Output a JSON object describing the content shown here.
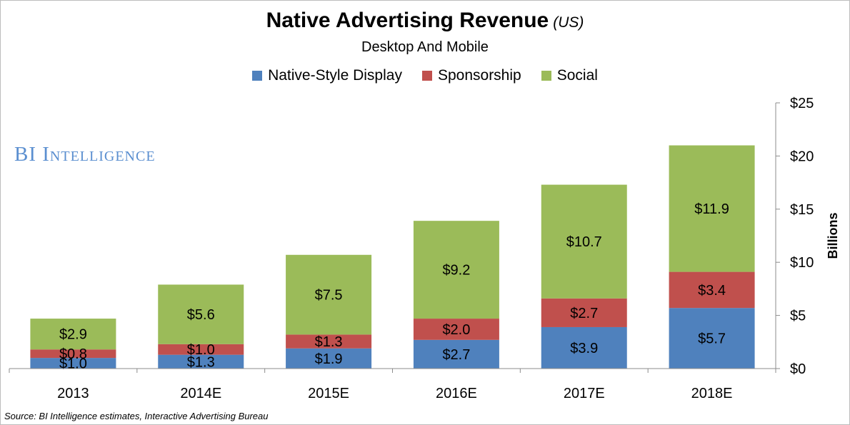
{
  "title": "Native Advertising Revenue",
  "title_suffix": "(US)",
  "subtitle": "Desktop And Mobile",
  "watermark": "BI Intelligence",
  "source": "Source: BI Intelligence estimates, Interactive Advertising Bureau",
  "chart_data": {
    "type": "bar",
    "stacked": true,
    "categories": [
      "2013",
      "2014E",
      "2015E",
      "2016E",
      "2017E",
      "2018E"
    ],
    "series": [
      {
        "name": "Native-Style Display",
        "color": "#4f81bd",
        "values": [
          1.0,
          1.3,
          1.9,
          2.7,
          3.9,
          5.7
        ],
        "labels": [
          "$1.0",
          "$1.3",
          "$1.9",
          "$2.7",
          "$3.9",
          "$5.7"
        ]
      },
      {
        "name": "Sponsorship",
        "color": "#c0504d",
        "values": [
          0.8,
          1.0,
          1.3,
          2.0,
          2.7,
          3.4
        ],
        "labels": [
          "$0.8",
          "$1.0",
          "$1.3",
          "$2.0",
          "$2.7",
          "$3.4"
        ]
      },
      {
        "name": "Social",
        "color": "#9bbb59",
        "values": [
          2.9,
          5.6,
          7.5,
          9.2,
          10.7,
          11.9
        ],
        "labels": [
          "$2.9",
          "$5.6",
          "$7.5",
          "$9.2",
          "$10.7",
          "$11.9"
        ]
      }
    ],
    "ylabel": "Billions",
    "ylim": [
      0,
      25
    ],
    "yticks": [
      0,
      5,
      10,
      15,
      20,
      25
    ],
    "ytick_labels": [
      "$0",
      "$5",
      "$10",
      "$15",
      "$20",
      "$25"
    ],
    "y_axis_side": "right",
    "legend_position": "top",
    "grid": false
  }
}
